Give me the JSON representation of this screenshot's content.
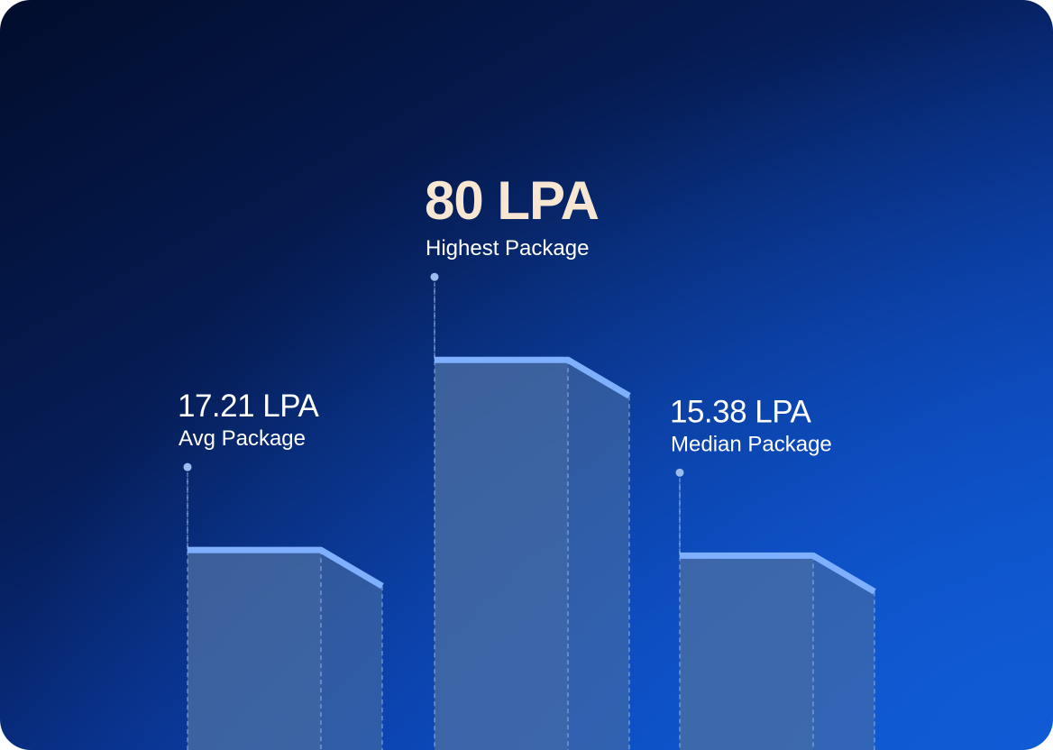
{
  "chart_data": {
    "type": "bar",
    "unit": "LPA",
    "categories": [
      "Avg Package",
      "Highest Package",
      "Median Package"
    ],
    "values": [
      17.21,
      80,
      15.38
    ],
    "value_labels": [
      "17.21 LPA",
      "80 LPA",
      "15.38 LPA"
    ],
    "highlight_index": 1
  },
  "colors": {
    "background_dark": "#020d2c",
    "background_light": "#0d55cf",
    "bar_fill": "#4a6ea3",
    "bar_top_line": "#7fb0ff",
    "highlight_value": "#f6e6d2",
    "text": "#ffffff",
    "dashed_line": "#9cbcf0"
  }
}
